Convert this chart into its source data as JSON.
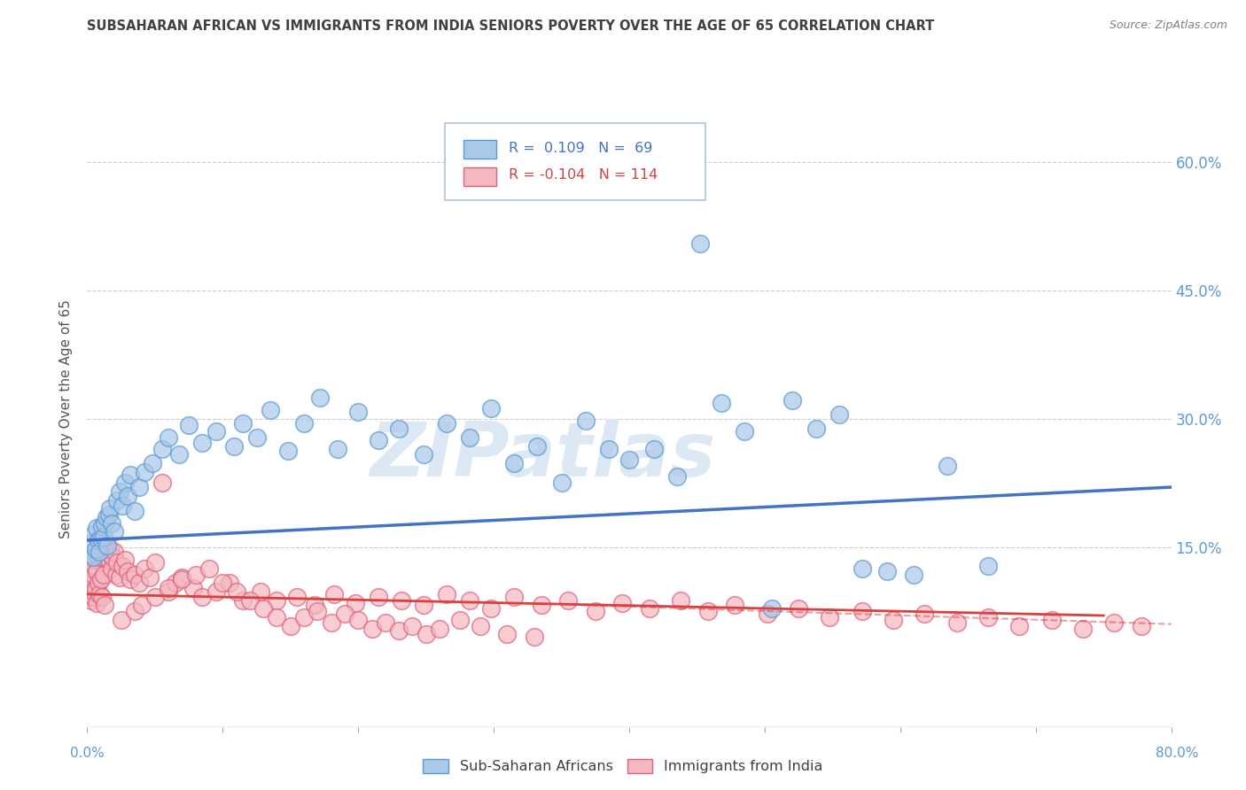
{
  "title": "SUBSAHARAN AFRICAN VS IMMIGRANTS FROM INDIA SENIORS POVERTY OVER THE AGE OF 65 CORRELATION CHART",
  "source": "Source: ZipAtlas.com",
  "ylabel": "Seniors Poverty Over the Age of 65",
  "ytick_values": [
    0.15,
    0.3,
    0.45,
    0.6
  ],
  "ytick_labels": [
    "15.0%",
    "30.0%",
    "45.0%",
    "60.0%"
  ],
  "xmin": 0.0,
  "xmax": 0.8,
  "ymin": -0.06,
  "ymax": 0.66,
  "legend_label1": "Sub-Saharan Africans",
  "legend_label2": "Immigrants from India",
  "blue_color": "#aac8e8",
  "pink_color": "#f4b8c0",
  "blue_edge_color": "#5b9bd5",
  "pink_edge_color": "#e06080",
  "blue_line_color": "#4472c4",
  "pink_line_color": "#d94040",
  "title_color": "#404040",
  "source_color": "#808080",
  "axis_label_color": "#5b9bd5",
  "watermark_text": "ZIPatlas",
  "watermark_color": "#dde8f5",
  "blue_trend_x": [
    0.0,
    0.8
  ],
  "blue_trend_y": [
    0.158,
    0.22
  ],
  "pink_trend_x": [
    0.0,
    0.75
  ],
  "pink_trend_y": [
    0.095,
    0.07
  ],
  "blue_scatter_x": [
    0.002,
    0.003,
    0.004,
    0.005,
    0.006,
    0.007,
    0.008,
    0.009,
    0.01,
    0.011,
    0.012,
    0.013,
    0.014,
    0.015,
    0.016,
    0.017,
    0.018,
    0.02,
    0.022,
    0.024,
    0.026,
    0.028,
    0.03,
    0.032,
    0.035,
    0.038,
    0.042,
    0.048,
    0.055,
    0.06,
    0.068,
    0.075,
    0.085,
    0.095,
    0.108,
    0.115,
    0.125,
    0.135,
    0.148,
    0.16,
    0.172,
    0.185,
    0.2,
    0.215,
    0.23,
    0.248,
    0.265,
    0.282,
    0.298,
    0.315,
    0.332,
    0.35,
    0.368,
    0.385,
    0.4,
    0.418,
    0.435,
    0.452,
    0.468,
    0.485,
    0.505,
    0.52,
    0.538,
    0.555,
    0.572,
    0.59,
    0.61,
    0.635,
    0.665
  ],
  "blue_scatter_y": [
    0.142,
    0.155,
    0.138,
    0.165,
    0.148,
    0.172,
    0.158,
    0.145,
    0.16,
    0.175,
    0.162,
    0.178,
    0.185,
    0.152,
    0.188,
    0.195,
    0.178,
    0.168,
    0.205,
    0.215,
    0.198,
    0.225,
    0.21,
    0.235,
    0.192,
    0.22,
    0.238,
    0.248,
    0.265,
    0.278,
    0.258,
    0.292,
    0.272,
    0.285,
    0.268,
    0.295,
    0.278,
    0.31,
    0.262,
    0.295,
    0.325,
    0.265,
    0.308,
    0.275,
    0.288,
    0.258,
    0.295,
    0.278,
    0.312,
    0.248,
    0.268,
    0.225,
    0.298,
    0.265,
    0.252,
    0.265,
    0.232,
    0.505,
    0.318,
    0.285,
    0.078,
    0.322,
    0.288,
    0.305,
    0.125,
    0.122,
    0.118,
    0.245,
    0.128
  ],
  "pink_scatter_x": [
    0.001,
    0.002,
    0.002,
    0.003,
    0.003,
    0.004,
    0.004,
    0.005,
    0.005,
    0.006,
    0.006,
    0.007,
    0.007,
    0.008,
    0.008,
    0.009,
    0.009,
    0.01,
    0.01,
    0.011,
    0.011,
    0.012,
    0.012,
    0.013,
    0.013,
    0.014,
    0.015,
    0.016,
    0.017,
    0.018,
    0.019,
    0.02,
    0.021,
    0.022,
    0.024,
    0.026,
    0.028,
    0.03,
    0.032,
    0.035,
    0.038,
    0.042,
    0.046,
    0.05,
    0.055,
    0.06,
    0.065,
    0.07,
    0.078,
    0.085,
    0.095,
    0.105,
    0.115,
    0.128,
    0.14,
    0.155,
    0.168,
    0.182,
    0.198,
    0.215,
    0.232,
    0.248,
    0.265,
    0.282,
    0.298,
    0.315,
    0.335,
    0.355,
    0.375,
    0.395,
    0.415,
    0.438,
    0.458,
    0.478,
    0.502,
    0.525,
    0.548,
    0.572,
    0.595,
    0.618,
    0.642,
    0.665,
    0.688,
    0.712,
    0.735,
    0.758,
    0.778,
    0.025,
    0.035,
    0.04,
    0.05,
    0.06,
    0.07,
    0.08,
    0.09,
    0.1,
    0.11,
    0.12,
    0.13,
    0.14,
    0.15,
    0.16,
    0.17,
    0.18,
    0.19,
    0.2,
    0.21,
    0.22,
    0.23,
    0.24,
    0.25,
    0.26,
    0.275,
    0.29,
    0.31,
    0.33
  ],
  "pink_scatter_y": [
    0.105,
    0.115,
    0.095,
    0.125,
    0.088,
    0.118,
    0.092,
    0.128,
    0.098,
    0.135,
    0.102,
    0.122,
    0.085,
    0.138,
    0.108,
    0.145,
    0.095,
    0.148,
    0.112,
    0.152,
    0.092,
    0.138,
    0.118,
    0.148,
    0.082,
    0.155,
    0.142,
    0.135,
    0.148,
    0.125,
    0.138,
    0.145,
    0.118,
    0.132,
    0.115,
    0.128,
    0.135,
    0.122,
    0.112,
    0.118,
    0.108,
    0.125,
    0.115,
    0.132,
    0.225,
    0.098,
    0.108,
    0.115,
    0.102,
    0.092,
    0.098,
    0.108,
    0.088,
    0.098,
    0.088,
    0.092,
    0.082,
    0.095,
    0.085,
    0.092,
    0.088,
    0.082,
    0.095,
    0.088,
    0.078,
    0.092,
    0.082,
    0.088,
    0.075,
    0.085,
    0.078,
    0.088,
    0.075,
    0.082,
    0.072,
    0.078,
    0.068,
    0.075,
    0.065,
    0.072,
    0.062,
    0.068,
    0.058,
    0.065,
    0.055,
    0.062,
    0.058,
    0.065,
    0.075,
    0.082,
    0.092,
    0.102,
    0.112,
    0.118,
    0.125,
    0.108,
    0.098,
    0.088,
    0.078,
    0.068,
    0.058,
    0.068,
    0.075,
    0.062,
    0.072,
    0.065,
    0.055,
    0.062,
    0.052,
    0.058,
    0.048,
    0.055,
    0.065,
    0.058,
    0.048,
    0.045
  ]
}
